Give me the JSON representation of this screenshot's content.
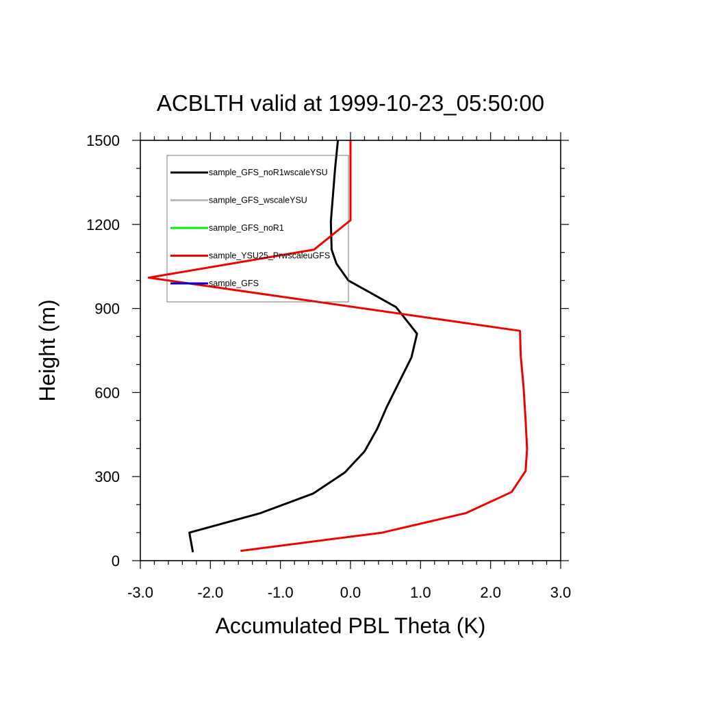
{
  "chart_data": {
    "type": "line",
    "title": "ACBLTH valid at 1999-10-23_05:50:00",
    "xlabel": "Accumulated PBL Theta (K)",
    "ylabel": "Height (m)",
    "xlim": [
      -3.0,
      3.0
    ],
    "ylim": [
      0,
      1500
    ],
    "x_ticks": [
      -3.0,
      -2.0,
      -1.0,
      0.0,
      1.0,
      2.0,
      3.0
    ],
    "x_tick_labels": [
      "-3.0",
      "-2.0",
      "-1.0",
      "0.0",
      "1.0",
      "2.0",
      "3.0"
    ],
    "y_ticks": [
      0,
      300,
      600,
      900,
      1200,
      1500
    ],
    "y_tick_labels": [
      "0",
      "300",
      "600",
      "900",
      "1200",
      "1500"
    ],
    "grid": false,
    "legend_position": "top-left inside",
    "series": [
      {
        "name": "sample_GFS_noR1wscaleYSU",
        "color": "#000000",
        "x": [
          -2.25,
          -2.3,
          -1.28,
          -0.53,
          -0.08,
          0.2,
          0.38,
          0.52,
          0.7,
          0.87,
          0.95,
          0.65,
          -0.03,
          -0.2,
          -0.27,
          -0.28,
          -0.22,
          -0.18
        ],
        "y": [
          30,
          100,
          170,
          240,
          315,
          390,
          470,
          550,
          640,
          725,
          810,
          905,
          1000,
          1060,
          1110,
          1210,
          1400,
          1500
        ]
      },
      {
        "name": "sample_GFS_wscaleYSU",
        "color": "#bbbbbb",
        "x": [],
        "y": []
      },
      {
        "name": "sample_GFS_noR1",
        "color": "#00ee00",
        "x": [],
        "y": []
      },
      {
        "name": "sample_YSU25_PrwscaleuGFS",
        "color": "#ee0000",
        "x": [
          -1.57,
          0.45,
          1.65,
          2.3,
          2.5,
          2.52,
          2.5,
          2.47,
          2.43,
          2.42,
          -2.88,
          -0.52,
          0.0,
          0.0
        ],
        "y": [
          35,
          100,
          170,
          245,
          320,
          400,
          500,
          620,
          730,
          820,
          1010,
          1110,
          1215,
          1500
        ]
      },
      {
        "name": "sample_GFS",
        "color": "#0000cc",
        "x": [],
        "y": []
      }
    ]
  }
}
